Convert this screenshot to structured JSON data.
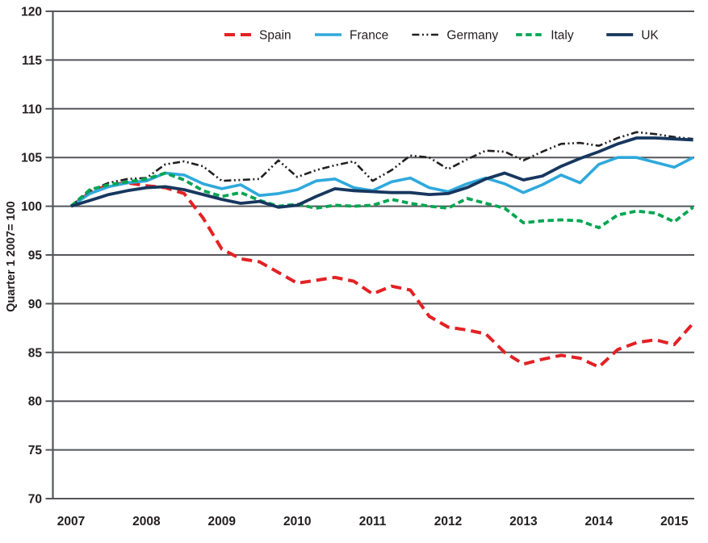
{
  "chart": {
    "y_axis_title": "Quarter 1 2007= 100",
    "y_tick_labels": [
      "120",
      "115",
      "110",
      "105",
      "100",
      "95",
      "90",
      "85",
      "80",
      "75",
      "70"
    ],
    "x_tick_labels": [
      "2007",
      "2008",
      "2009",
      "2010",
      "2011",
      "2012",
      "2013",
      "2014",
      "2015"
    ],
    "grid_color": "#55565a",
    "text_color": "#231f20",
    "background_color": "#ffffff"
  },
  "chart_data": {
    "type": "line",
    "title": "",
    "xlabel": "",
    "ylabel": "Quarter 1 2007= 100",
    "x_start": "2007 Q1",
    "x_end": "2015 Q2",
    "x_frequency": "quarterly",
    "x_tick_labels": [
      "2007",
      "2008",
      "2009",
      "2010",
      "2011",
      "2012",
      "2013",
      "2014",
      "2015"
    ],
    "ylim": [
      70,
      120
    ],
    "y_step": 5,
    "grid": "horizontal",
    "legend_position": "top",
    "series": [
      {
        "name": "Spain",
        "color": "#e32124",
        "style": "dashed",
        "width": 4,
        "values": [
          100.0,
          101.4,
          102.2,
          102.4,
          102.1,
          101.9,
          101.3,
          98.8,
          95.6,
          94.6,
          94.3,
          93.2,
          92.1,
          92.4,
          92.7,
          92.3,
          91.0,
          91.8,
          91.4,
          88.7,
          87.6,
          87.3,
          86.9,
          85.0,
          83.8,
          84.3,
          84.7,
          84.4,
          83.5,
          85.3,
          86.0,
          86.3,
          85.8,
          88.0
        ]
      },
      {
        "name": "France",
        "color": "#2fa9dc",
        "style": "solid",
        "width": 3.6,
        "values": [
          100.0,
          101.3,
          102.0,
          102.4,
          102.6,
          103.4,
          103.2,
          102.3,
          101.8,
          102.2,
          101.1,
          101.3,
          101.7,
          102.6,
          102.8,
          101.9,
          101.6,
          102.5,
          102.9,
          101.9,
          101.5,
          102.3,
          102.9,
          102.3,
          101.4,
          102.2,
          103.2,
          102.4,
          104.3,
          105.0,
          105.0,
          104.5,
          104.0,
          105.0
        ]
      },
      {
        "name": "Germany",
        "color": "#231f20",
        "style": "dash-dot-dot",
        "width": 2.6,
        "values": [
          100.0,
          101.6,
          102.4,
          102.8,
          102.9,
          104.3,
          104.6,
          104.1,
          102.6,
          102.7,
          102.8,
          104.7,
          103.0,
          103.7,
          104.2,
          104.6,
          102.6,
          103.7,
          105.2,
          105.0,
          103.8,
          104.8,
          105.7,
          105.6,
          104.7,
          105.6,
          106.4,
          106.5,
          106.2,
          107.0,
          107.6,
          107.4,
          107.1,
          106.9
        ]
      },
      {
        "name": "Italy",
        "color": "#00a650",
        "style": "short-dash",
        "width": 3.8,
        "values": [
          100.0,
          101.7,
          102.2,
          102.5,
          102.8,
          103.4,
          102.7,
          101.6,
          101.0,
          101.4,
          100.6,
          100.0,
          100.2,
          99.8,
          100.1,
          100.0,
          100.1,
          100.7,
          100.3,
          100.0,
          99.8,
          100.8,
          100.3,
          99.8,
          98.3,
          98.5,
          98.6,
          98.5,
          97.8,
          99.1,
          99.5,
          99.3,
          98.4,
          99.9
        ]
      },
      {
        "name": "UK",
        "color": "#17375e",
        "style": "solid",
        "width": 3.8,
        "values": [
          100.0,
          100.6,
          101.2,
          101.6,
          101.9,
          102.0,
          101.7,
          101.2,
          100.7,
          100.3,
          100.5,
          99.9,
          100.1,
          101.0,
          101.8,
          101.6,
          101.5,
          101.4,
          101.4,
          101.2,
          101.3,
          101.9,
          102.8,
          103.4,
          102.7,
          103.1,
          104.1,
          104.9,
          105.6,
          106.4,
          107.0,
          107.0,
          106.9,
          106.8
        ]
      }
    ]
  }
}
